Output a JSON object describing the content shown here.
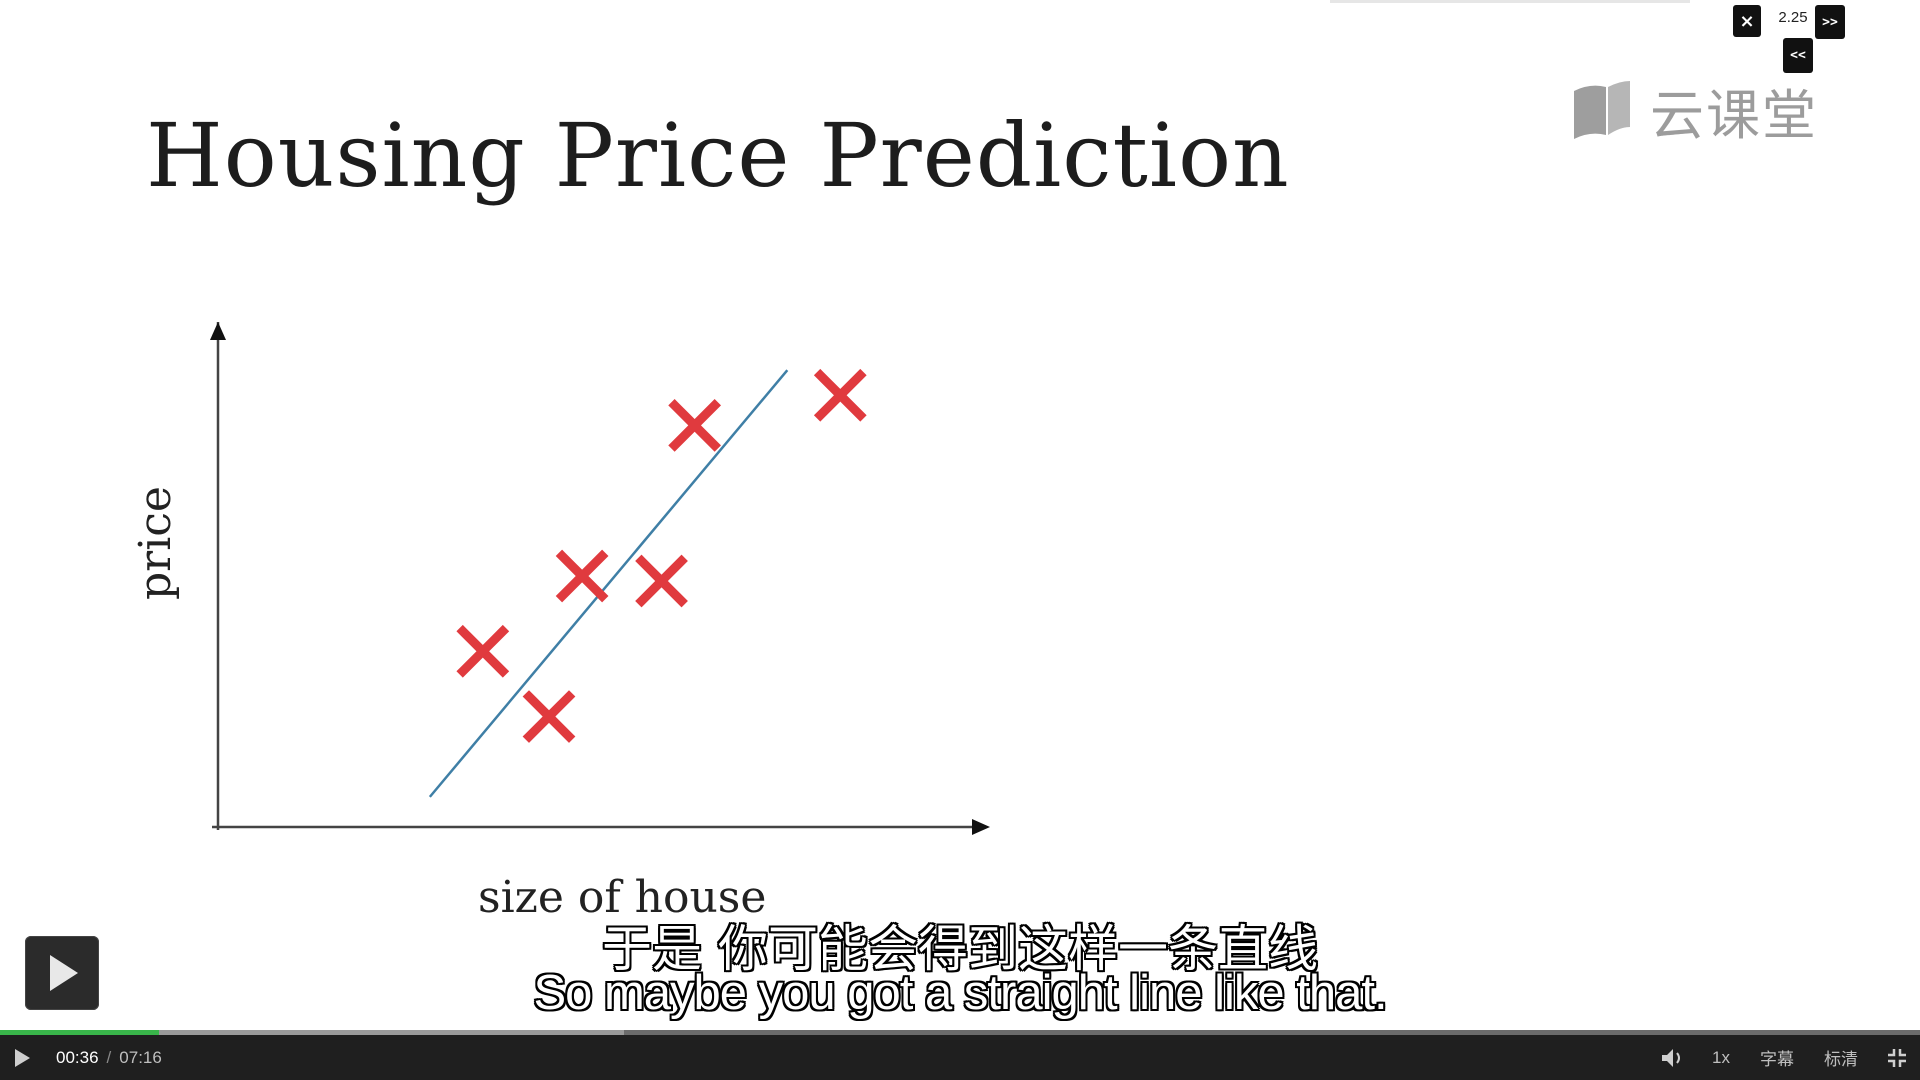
{
  "speed": {
    "close_icon": "×",
    "value": "2.25",
    "next_label": ">>",
    "prev_label": "<<"
  },
  "watermark": {
    "text": "云课堂",
    "icon": "book-icon"
  },
  "slide": {
    "title": "Housing Price Prediction",
    "y_label": "price",
    "x_label": "size of house",
    "chart_data": {
      "type": "scatter",
      "title": "Housing Price Prediction",
      "xlabel": "size of house",
      "ylabel": "price",
      "marker": "x",
      "marker_color": "#e03a3e",
      "points": [
        {
          "x": 0.4,
          "y": 0.35
        },
        {
          "x": 0.5,
          "y": 0.22
        },
        {
          "x": 0.55,
          "y": 0.5
        },
        {
          "x": 0.67,
          "y": 0.49
        },
        {
          "x": 0.72,
          "y": 0.8
        },
        {
          "x": 0.94,
          "y": 0.86
        }
      ],
      "fit_line": {
        "color": "#3f7fa6",
        "start": {
          "x": 0.32,
          "y": 0.06
        },
        "end": {
          "x": 0.86,
          "y": 0.91
        }
      },
      "xlim": [
        0,
        1
      ],
      "ylim": [
        0,
        1
      ],
      "grid": false
    }
  },
  "subtitles": {
    "chinese": "于是 你可能会得到这样一条直线",
    "english": "So maybe you got a straight line like that."
  },
  "player": {
    "current_time": "00:36",
    "separator": "/",
    "total_time": "07:16",
    "played_fraction": 0.083,
    "buffered_fraction": 0.325,
    "rate_label": "1x",
    "subtitle_label": "字幕",
    "quality_label": "标清",
    "colors": {
      "played": "#39b54a",
      "bar": "#1f1f1f"
    }
  }
}
